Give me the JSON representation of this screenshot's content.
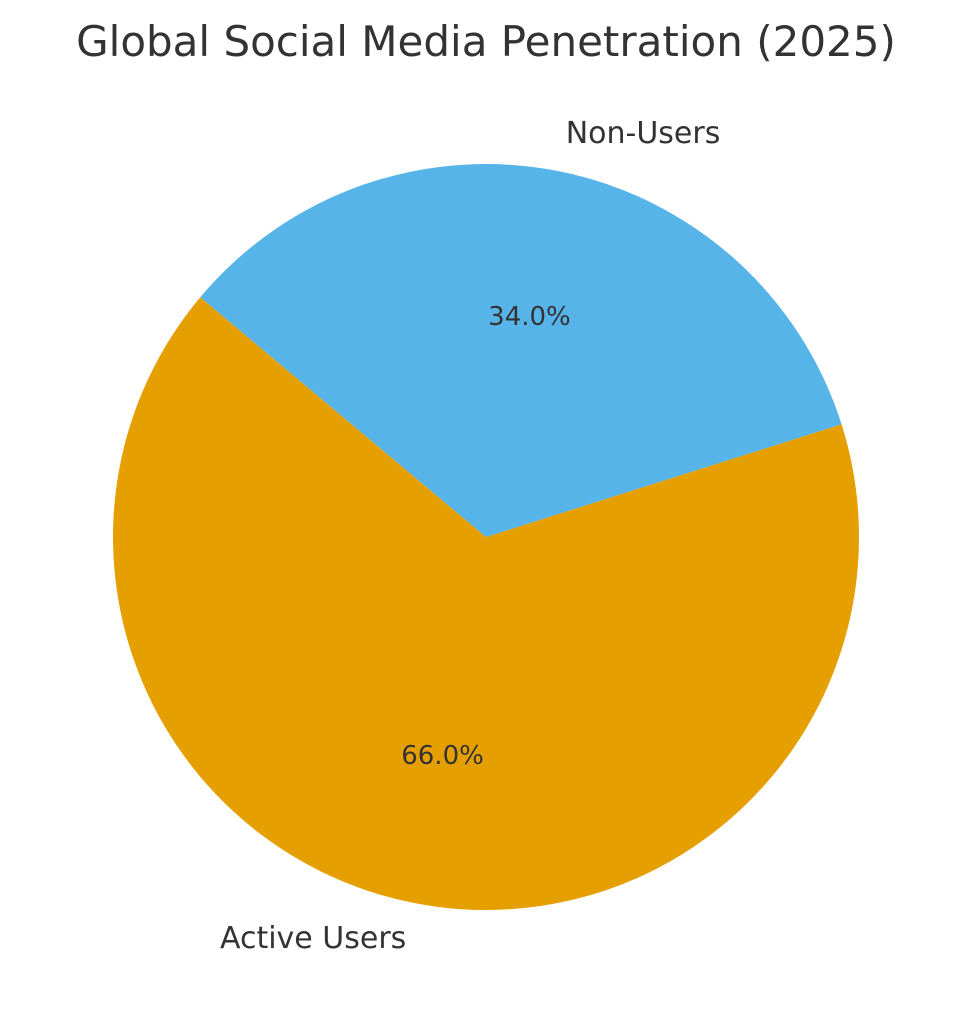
{
  "chart_data": {
    "type": "pie",
    "title": "Global Social Media Penetration (2025)",
    "categories": [
      "Active Users",
      "Non-Users"
    ],
    "values": [
      66.0,
      34.0
    ],
    "value_labels": [
      "66.0%",
      "34.0%"
    ],
    "colors": [
      "#E69F00",
      "#56B4E9"
    ],
    "start_angle_deg": 140,
    "direction": "counterclockwise",
    "legend": "none"
  }
}
